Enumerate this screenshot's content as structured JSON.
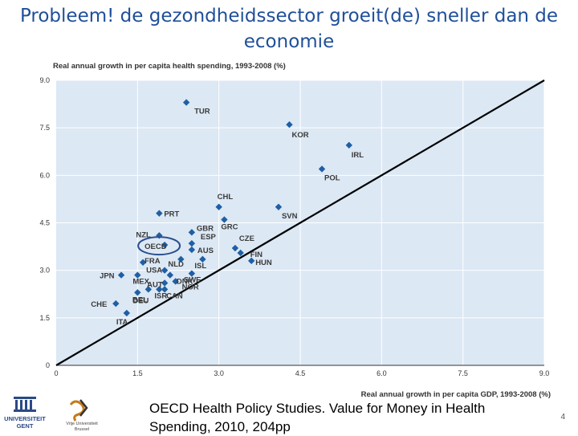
{
  "slide": {
    "title": "Probleem! de gezondheidssector groeit(de) sneller dan de economie",
    "citation": "OECD Health Policy Studies. Value for Money in Health Spending, 2010, 204pp",
    "page_number": "4",
    "logos": [
      {
        "name": "ugent",
        "text_lines": [
          "UNIVERSITEIT",
          "GENT"
        ]
      },
      {
        "name": "vub",
        "text_lines": [
          "Vrije Universiteit",
          "Brussel"
        ]
      }
    ]
  },
  "chart_data": {
    "type": "scatter",
    "title": "Real annual growth in per capita health spending, 1993-2008 (%)",
    "xlabel": "Real annual growth in per capita GDP, 1993-2008 (%)",
    "ylabel": "",
    "xlim": [
      0,
      9
    ],
    "ylim": [
      0,
      9
    ],
    "xticks": [
      "0",
      "1.5",
      "3.0",
      "4.5",
      "6.0",
      "7.5",
      "9.0"
    ],
    "yticks": [
      "0",
      "1.5",
      "3.0",
      "4.5",
      "6.0",
      "7.5",
      "9.0"
    ],
    "diagonal_line": true,
    "highlighted": "OECD",
    "colors": {
      "plot_background": "#dce8f4",
      "marker": "#1f5fa5",
      "line": "#000000",
      "highlight": "#2a4e8e"
    },
    "points": [
      {
        "label": "TUR",
        "x": 2.4,
        "y": 8.3
      },
      {
        "label": "KOR",
        "x": 4.3,
        "y": 7.6
      },
      {
        "label": "IRL",
        "x": 5.4,
        "y": 6.95
      },
      {
        "label": "POL",
        "x": 4.9,
        "y": 6.2
      },
      {
        "label": "CHL",
        "x": 3.0,
        "y": 5.0
      },
      {
        "label": "SVN",
        "x": 4.1,
        "y": 5.0
      },
      {
        "label": "PRT",
        "x": 1.9,
        "y": 4.8
      },
      {
        "label": "GRC",
        "x": 3.1,
        "y": 4.6
      },
      {
        "label": "GBR",
        "x": 2.5,
        "y": 4.2
      },
      {
        "label": "NZL",
        "x": 1.9,
        "y": 4.1
      },
      {
        "label": "ESP",
        "x": 2.5,
        "y": 3.85
      },
      {
        "label": "OECD",
        "x": 2.0,
        "y": 3.8
      },
      {
        "label": "CZE",
        "x": 3.3,
        "y": 3.7
      },
      {
        "label": "AUS",
        "x": 2.5,
        "y": 3.65
      },
      {
        "label": "FIN",
        "x": 3.4,
        "y": 3.55
      },
      {
        "label": "NLD",
        "x": 2.3,
        "y": 3.35
      },
      {
        "label": "ISL",
        "x": 2.7,
        "y": 3.35
      },
      {
        "label": "HUN",
        "x": 3.6,
        "y": 3.3
      },
      {
        "label": "FRA",
        "x": 1.6,
        "y": 3.25
      },
      {
        "label": "USA",
        "x": 2.0,
        "y": 3.0
      },
      {
        "label": "DNK",
        "x": 2.1,
        "y": 2.85
      },
      {
        "label": "SWE",
        "x": 2.5,
        "y": 2.9
      },
      {
        "label": "JPN",
        "x": 1.2,
        "y": 2.85
      },
      {
        "label": "MEX",
        "x": 1.5,
        "y": 2.85
      },
      {
        "label": "AUT",
        "x": 2.0,
        "y": 2.6
      },
      {
        "label": "NOR",
        "x": 2.2,
        "y": 2.65
      },
      {
        "label": "CAN",
        "x": 2.0,
        "y": 2.4
      },
      {
        "label": "BEL",
        "x": 1.7,
        "y": 2.4
      },
      {
        "label": "ISR",
        "x": 1.9,
        "y": 2.4
      },
      {
        "label": "DEU",
        "x": 1.5,
        "y": 2.3
      },
      {
        "label": "CHE",
        "x": 1.1,
        "y": 1.95
      },
      {
        "label": "ITA",
        "x": 1.3,
        "y": 1.65
      }
    ]
  }
}
